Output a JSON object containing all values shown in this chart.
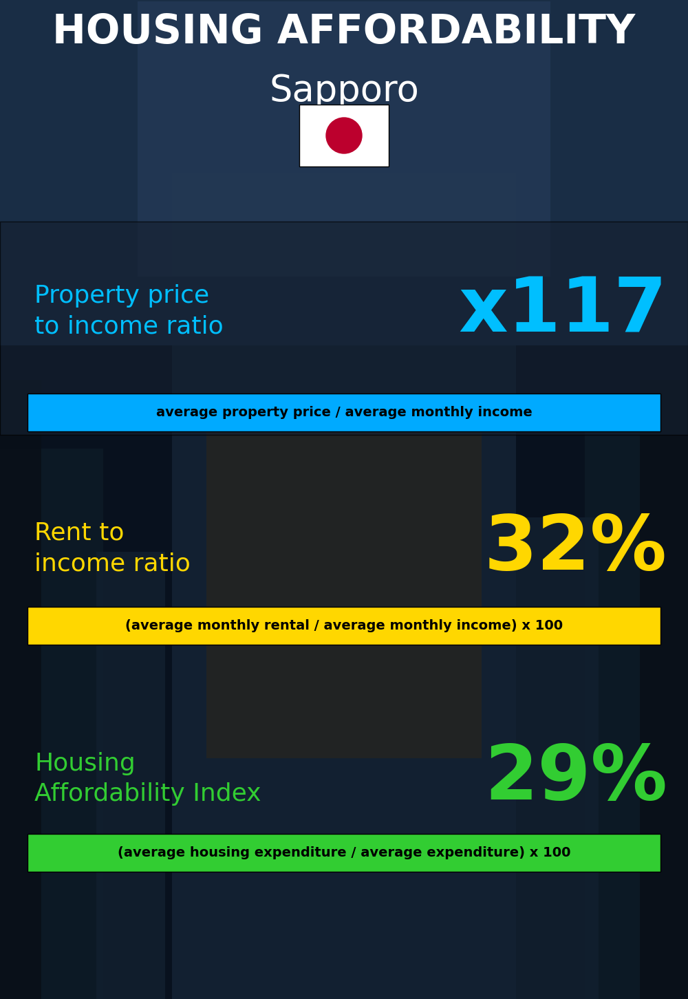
{
  "title_line1": "HOUSING AFFORDABILITY",
  "title_line2": "Sapporo",
  "bg_color": "#08111e",
  "section1_label": "Property price\nto income ratio",
  "section1_value": "x117",
  "section1_label_color": "#00bfff",
  "section1_value_color": "#00bfff",
  "section1_desc": "average property price / average monthly income",
  "section1_desc_bg": "#00aaff",
  "section2_label": "Rent to\nincome ratio",
  "section2_value": "32%",
  "section2_label_color": "#ffd700",
  "section2_value_color": "#ffd700",
  "section2_desc": "(average monthly rental / average monthly income) x 100",
  "section2_desc_bg": "#ffd700",
  "section3_label": "Housing\nAffordability Index",
  "section3_value": "29%",
  "section3_label_color": "#32cd32",
  "section3_value_color": "#32cd32",
  "section3_desc": "(average housing expenditure / average expenditure) x 100",
  "section3_desc_bg": "#32cd32",
  "title_color": "#ffffff",
  "title_fontsize": 42,
  "subtitle_fontsize": 38,
  "label_fontsize": 26,
  "value_fontsize": 80,
  "desc_fontsize": 14,
  "panel_color": "#1a2a3a",
  "panel_alpha": 0.6,
  "flag_white": "#ffffff",
  "flag_red": "#BC002D"
}
